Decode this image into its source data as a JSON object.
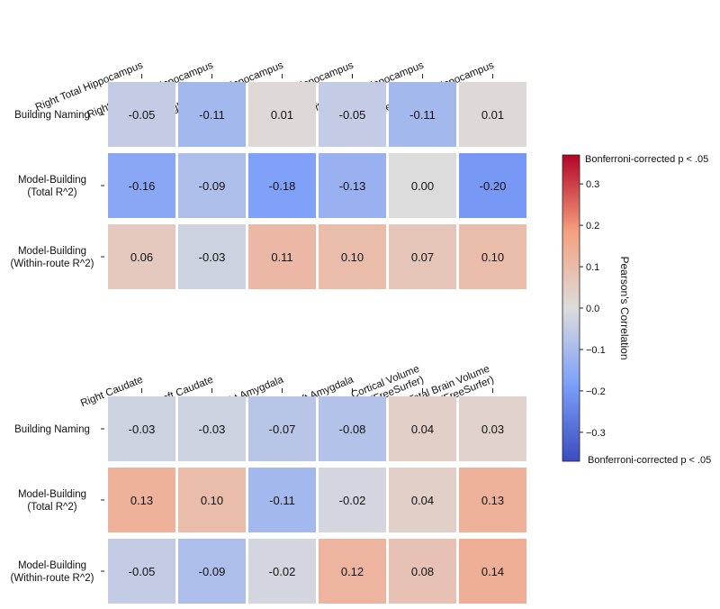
{
  "chart_data": [
    {
      "type": "heatmap",
      "title": "",
      "rows": [
        "Building Naming",
        [
          "Model-Building",
          "(Total R^2)"
        ],
        [
          "Model-Building",
          "(Within-route R^2)"
        ]
      ],
      "columns": [
        [
          "Right Total Hippocampus"
        ],
        [
          "Right Posterior Hippocampus"
        ],
        [
          "Right Anterior Hippocampus"
        ],
        [
          "Left Total Hippocampus"
        ],
        [
          "Left Posterior Hippocampus"
        ],
        [
          "Left Anterior Hippocampus"
        ]
      ],
      "values": [
        [
          -0.05,
          -0.11,
          0.01,
          -0.05,
          -0.11,
          0.01
        ],
        [
          -0.16,
          -0.09,
          -0.18,
          -0.13,
          0.0,
          -0.2
        ],
        [
          0.06,
          -0.03,
          0.11,
          0.1,
          0.07,
          0.1
        ]
      ]
    },
    {
      "type": "heatmap",
      "title": "",
      "rows": [
        "Building Naming",
        [
          "Model-Building",
          "(Total R^2)"
        ],
        [
          "Model-Building",
          "(Within-route R^2)"
        ]
      ],
      "columns": [
        [
          "Right Caudate"
        ],
        [
          "Left Caudate"
        ],
        [
          "Right Amygdala"
        ],
        [
          "Left Amygdala"
        ],
        [
          "Cortical Volume",
          "(FreeSurfer)"
        ],
        [
          "Total Brain Volume",
          "(FreeSurfer)"
        ]
      ],
      "values": [
        [
          -0.03,
          -0.03,
          -0.07,
          -0.08,
          0.04,
          0.03
        ],
        [
          0.13,
          0.1,
          -0.11,
          -0.02,
          0.04,
          0.13
        ],
        [
          -0.05,
          -0.09,
          -0.02,
          0.12,
          0.08,
          0.14
        ]
      ]
    }
  ],
  "colorbar": {
    "label": "Pearson's Correlation",
    "vmin": -0.37,
    "vmax": 0.37,
    "ticks": [
      -0.3,
      -0.2,
      -0.1,
      0.0,
      0.1,
      0.2,
      0.3
    ],
    "tick_labels": [
      "−0.3",
      "−0.2",
      "−0.1",
      "0.0",
      "0.1",
      "0.2",
      "0.3"
    ],
    "top_note": "Bonferroni-corrected p < .05",
    "bottom_note": "Bonferroni-corrected p < .05",
    "colormap": "coolwarm"
  }
}
